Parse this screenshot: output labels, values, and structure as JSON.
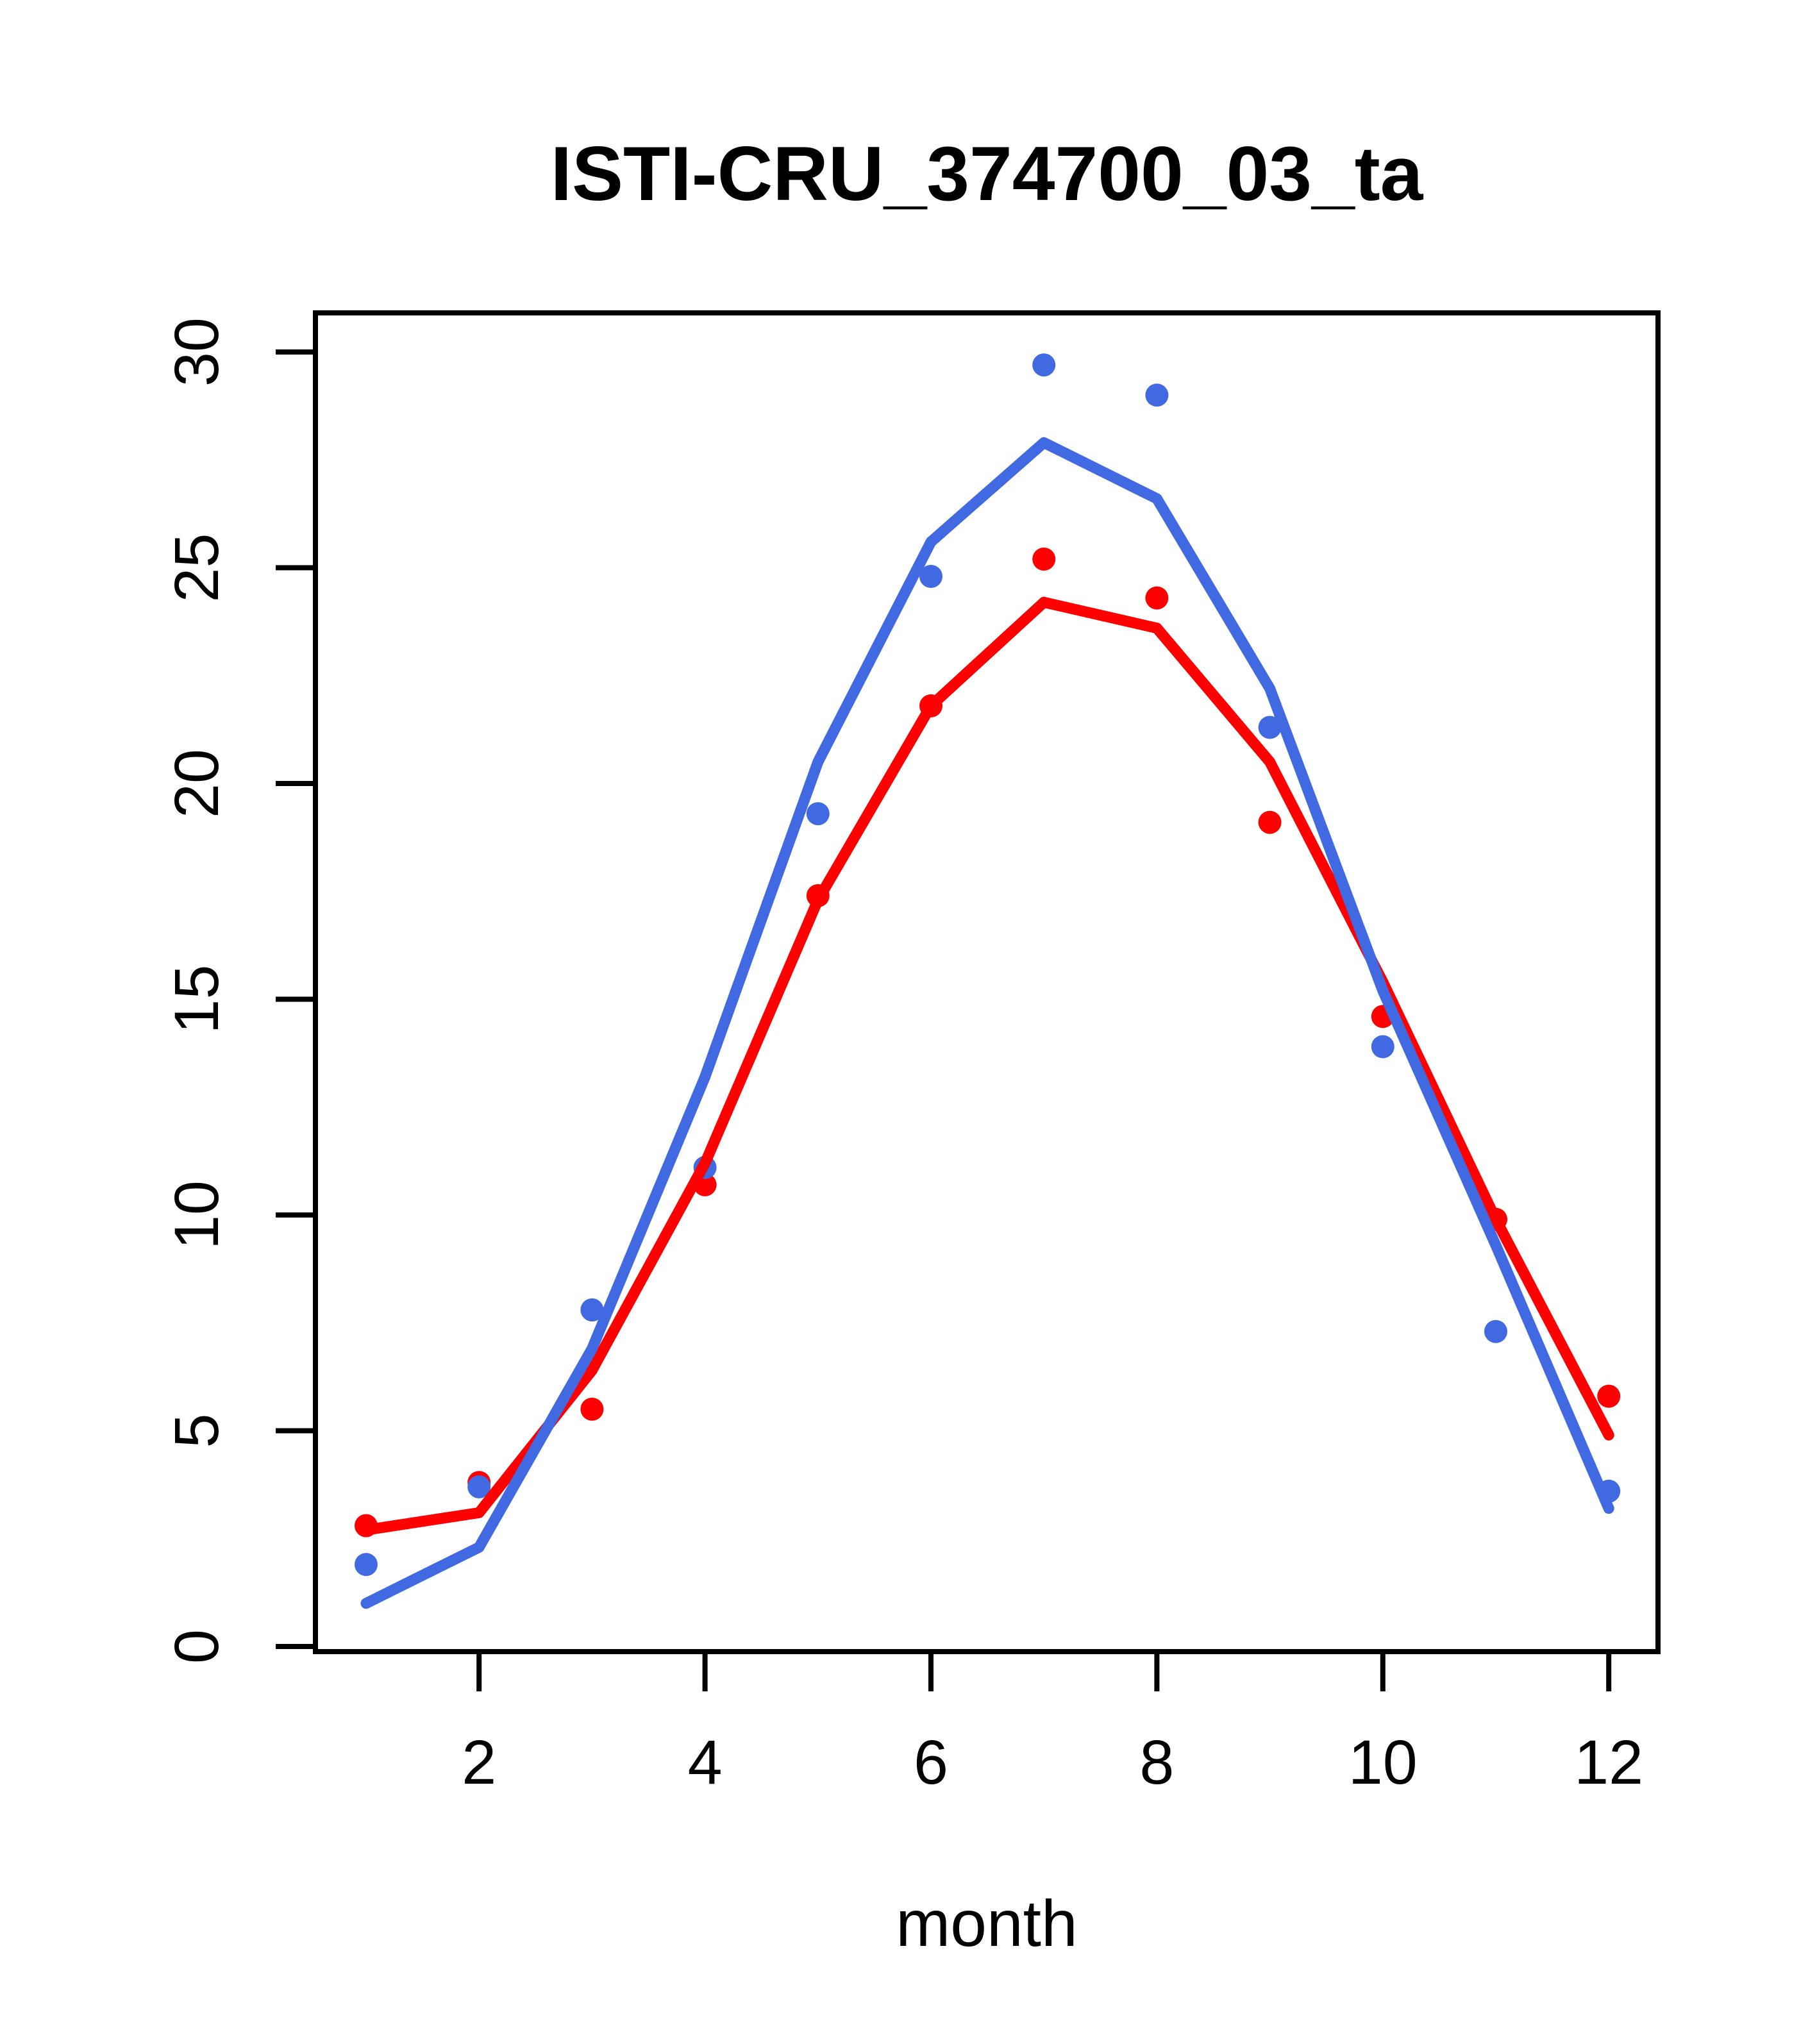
{
  "chart_data": {
    "type": "line",
    "title": "ISTI-CRU_374700_03_ta",
    "xlabel": "month",
    "ylabel": "",
    "x": [
      1,
      2,
      3,
      4,
      5,
      6,
      7,
      8,
      9,
      10,
      11,
      12
    ],
    "x_tick_labels": [
      "2",
      "4",
      "6",
      "8",
      "10",
      "12"
    ],
    "x_tick_values": [
      2,
      4,
      6,
      8,
      10,
      12
    ],
    "y_tick_labels": [
      "0",
      "5",
      "10",
      "15",
      "20",
      "25",
      "30"
    ],
    "y_tick_values": [
      0,
      5,
      10,
      15,
      20,
      25,
      30
    ],
    "xlim": [
      0.55,
      12.44
    ],
    "ylim": [
      -0.12,
      30.9
    ],
    "grid": false,
    "legend": "none",
    "colors": {
      "blue": "#4169E1",
      "red": "#FF0000"
    },
    "series": [
      {
        "name": "red-points",
        "style": "points",
        "color": "#FF0000",
        "values": [
          2.8,
          3.8,
          5.5,
          10.7,
          17.4,
          21.8,
          25.2,
          24.3,
          19.1,
          14.6,
          9.9,
          5.8
        ]
      },
      {
        "name": "blue-points",
        "style": "points",
        "color": "#4169E1",
        "values": [
          1.9,
          3.7,
          7.8,
          11.1,
          19.3,
          24.8,
          29.7,
          29.0,
          21.3,
          13.9,
          7.3,
          3.6
        ]
      },
      {
        "name": "red-line",
        "style": "line",
        "color": "#FF0000",
        "values": [
          2.7,
          3.1,
          6.4,
          11.2,
          17.3,
          21.8,
          24.2,
          23.6,
          20.5,
          15.4,
          9.9,
          4.9
        ]
      },
      {
        "name": "blue-line",
        "style": "line",
        "color": "#4169E1",
        "values": [
          1.0,
          2.3,
          6.9,
          13.2,
          20.5,
          25.6,
          27.9,
          26.6,
          22.2,
          15.2,
          9.3,
          3.2
        ]
      }
    ]
  }
}
